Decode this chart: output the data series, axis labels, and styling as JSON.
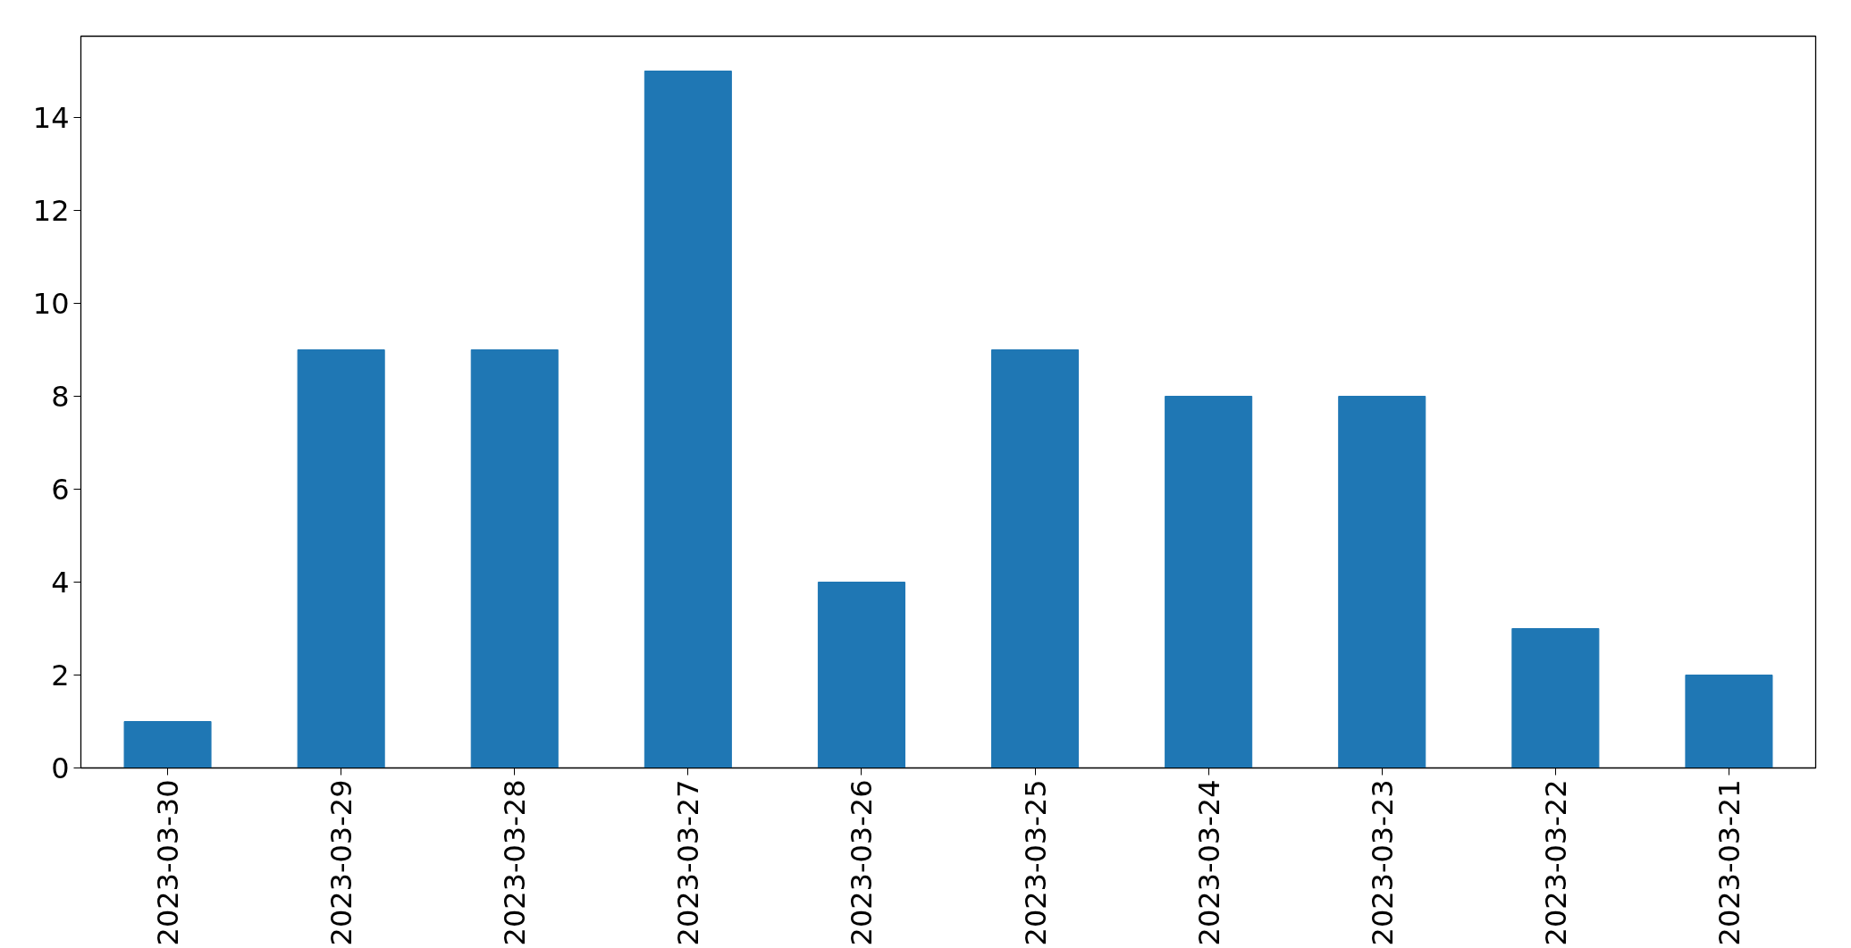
{
  "chart_data": {
    "type": "bar",
    "categories": [
      "2023-03-30",
      "2023-03-29",
      "2023-03-28",
      "2023-03-27",
      "2023-03-26",
      "2023-03-25",
      "2023-03-24",
      "2023-03-23",
      "2023-03-22",
      "2023-03-21"
    ],
    "values": [
      1,
      9,
      9,
      15,
      4,
      9,
      8,
      8,
      3,
      2
    ],
    "color": "#1f77b4",
    "ylim": [
      0,
      15.75
    ],
    "yticks": [
      0,
      2,
      4,
      6,
      8,
      10,
      12,
      14
    ]
  }
}
